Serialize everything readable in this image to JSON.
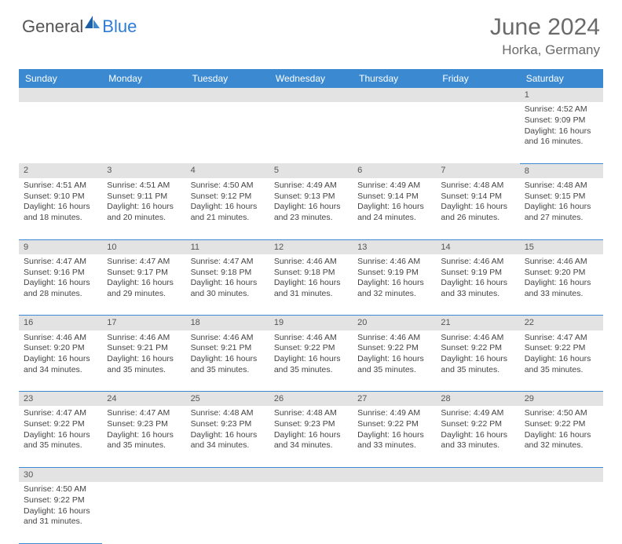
{
  "brand": {
    "part1": "General",
    "part2": "Blue"
  },
  "title": {
    "month": "June 2024",
    "location": "Horka, Germany"
  },
  "colors": {
    "header_bg": "#3b8ad1",
    "header_text": "#ffffff",
    "daynum_bg": "#e3e3e3",
    "border": "#3b8ad1",
    "text": "#444444",
    "title_text": "#6a6a6a",
    "logo_blue": "#2e7cd6"
  },
  "typography": {
    "title_fontsize": 30,
    "location_fontsize": 17,
    "header_fontsize": 12,
    "cell_fontsize": 10.5,
    "daynum_fontsize": 11
  },
  "weekdays": [
    "Sunday",
    "Monday",
    "Tuesday",
    "Wednesday",
    "Thursday",
    "Friday",
    "Saturday"
  ],
  "weeks": [
    [
      null,
      null,
      null,
      null,
      null,
      null,
      {
        "n": "1",
        "sunrise": "Sunrise: 4:52 AM",
        "sunset": "Sunset: 9:09 PM",
        "day1": "Daylight: 16 hours",
        "day2": "and 16 minutes."
      }
    ],
    [
      {
        "n": "2",
        "sunrise": "Sunrise: 4:51 AM",
        "sunset": "Sunset: 9:10 PM",
        "day1": "Daylight: 16 hours",
        "day2": "and 18 minutes."
      },
      {
        "n": "3",
        "sunrise": "Sunrise: 4:51 AM",
        "sunset": "Sunset: 9:11 PM",
        "day1": "Daylight: 16 hours",
        "day2": "and 20 minutes."
      },
      {
        "n": "4",
        "sunrise": "Sunrise: 4:50 AM",
        "sunset": "Sunset: 9:12 PM",
        "day1": "Daylight: 16 hours",
        "day2": "and 21 minutes."
      },
      {
        "n": "5",
        "sunrise": "Sunrise: 4:49 AM",
        "sunset": "Sunset: 9:13 PM",
        "day1": "Daylight: 16 hours",
        "day2": "and 23 minutes."
      },
      {
        "n": "6",
        "sunrise": "Sunrise: 4:49 AM",
        "sunset": "Sunset: 9:14 PM",
        "day1": "Daylight: 16 hours",
        "day2": "and 24 minutes."
      },
      {
        "n": "7",
        "sunrise": "Sunrise: 4:48 AM",
        "sunset": "Sunset: 9:14 PM",
        "day1": "Daylight: 16 hours",
        "day2": "and 26 minutes."
      },
      {
        "n": "8",
        "sunrise": "Sunrise: 4:48 AM",
        "sunset": "Sunset: 9:15 PM",
        "day1": "Daylight: 16 hours",
        "day2": "and 27 minutes."
      }
    ],
    [
      {
        "n": "9",
        "sunrise": "Sunrise: 4:47 AM",
        "sunset": "Sunset: 9:16 PM",
        "day1": "Daylight: 16 hours",
        "day2": "and 28 minutes."
      },
      {
        "n": "10",
        "sunrise": "Sunrise: 4:47 AM",
        "sunset": "Sunset: 9:17 PM",
        "day1": "Daylight: 16 hours",
        "day2": "and 29 minutes."
      },
      {
        "n": "11",
        "sunrise": "Sunrise: 4:47 AM",
        "sunset": "Sunset: 9:18 PM",
        "day1": "Daylight: 16 hours",
        "day2": "and 30 minutes."
      },
      {
        "n": "12",
        "sunrise": "Sunrise: 4:46 AM",
        "sunset": "Sunset: 9:18 PM",
        "day1": "Daylight: 16 hours",
        "day2": "and 31 minutes."
      },
      {
        "n": "13",
        "sunrise": "Sunrise: 4:46 AM",
        "sunset": "Sunset: 9:19 PM",
        "day1": "Daylight: 16 hours",
        "day2": "and 32 minutes."
      },
      {
        "n": "14",
        "sunrise": "Sunrise: 4:46 AM",
        "sunset": "Sunset: 9:19 PM",
        "day1": "Daylight: 16 hours",
        "day2": "and 33 minutes."
      },
      {
        "n": "15",
        "sunrise": "Sunrise: 4:46 AM",
        "sunset": "Sunset: 9:20 PM",
        "day1": "Daylight: 16 hours",
        "day2": "and 33 minutes."
      }
    ],
    [
      {
        "n": "16",
        "sunrise": "Sunrise: 4:46 AM",
        "sunset": "Sunset: 9:20 PM",
        "day1": "Daylight: 16 hours",
        "day2": "and 34 minutes."
      },
      {
        "n": "17",
        "sunrise": "Sunrise: 4:46 AM",
        "sunset": "Sunset: 9:21 PM",
        "day1": "Daylight: 16 hours",
        "day2": "and 35 minutes."
      },
      {
        "n": "18",
        "sunrise": "Sunrise: 4:46 AM",
        "sunset": "Sunset: 9:21 PM",
        "day1": "Daylight: 16 hours",
        "day2": "and 35 minutes."
      },
      {
        "n": "19",
        "sunrise": "Sunrise: 4:46 AM",
        "sunset": "Sunset: 9:22 PM",
        "day1": "Daylight: 16 hours",
        "day2": "and 35 minutes."
      },
      {
        "n": "20",
        "sunrise": "Sunrise: 4:46 AM",
        "sunset": "Sunset: 9:22 PM",
        "day1": "Daylight: 16 hours",
        "day2": "and 35 minutes."
      },
      {
        "n": "21",
        "sunrise": "Sunrise: 4:46 AM",
        "sunset": "Sunset: 9:22 PM",
        "day1": "Daylight: 16 hours",
        "day2": "and 35 minutes."
      },
      {
        "n": "22",
        "sunrise": "Sunrise: 4:47 AM",
        "sunset": "Sunset: 9:22 PM",
        "day1": "Daylight: 16 hours",
        "day2": "and 35 minutes."
      }
    ],
    [
      {
        "n": "23",
        "sunrise": "Sunrise: 4:47 AM",
        "sunset": "Sunset: 9:22 PM",
        "day1": "Daylight: 16 hours",
        "day2": "and 35 minutes."
      },
      {
        "n": "24",
        "sunrise": "Sunrise: 4:47 AM",
        "sunset": "Sunset: 9:23 PM",
        "day1": "Daylight: 16 hours",
        "day2": "and 35 minutes."
      },
      {
        "n": "25",
        "sunrise": "Sunrise: 4:48 AM",
        "sunset": "Sunset: 9:23 PM",
        "day1": "Daylight: 16 hours",
        "day2": "and 34 minutes."
      },
      {
        "n": "26",
        "sunrise": "Sunrise: 4:48 AM",
        "sunset": "Sunset: 9:23 PM",
        "day1": "Daylight: 16 hours",
        "day2": "and 34 minutes."
      },
      {
        "n": "27",
        "sunrise": "Sunrise: 4:49 AM",
        "sunset": "Sunset: 9:22 PM",
        "day1": "Daylight: 16 hours",
        "day2": "and 33 minutes."
      },
      {
        "n": "28",
        "sunrise": "Sunrise: 4:49 AM",
        "sunset": "Sunset: 9:22 PM",
        "day1": "Daylight: 16 hours",
        "day2": "and 33 minutes."
      },
      {
        "n": "29",
        "sunrise": "Sunrise: 4:50 AM",
        "sunset": "Sunset: 9:22 PM",
        "day1": "Daylight: 16 hours",
        "day2": "and 32 minutes."
      }
    ],
    [
      {
        "n": "30",
        "sunrise": "Sunrise: 4:50 AM",
        "sunset": "Sunset: 9:22 PM",
        "day1": "Daylight: 16 hours",
        "day2": "and 31 minutes."
      },
      null,
      null,
      null,
      null,
      null,
      null
    ]
  ]
}
